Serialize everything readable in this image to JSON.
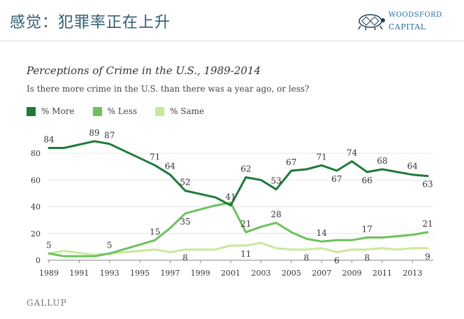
{
  "header": {
    "title": "感觉：犯罪率正在上升"
  },
  "logo": {
    "line1": "WOODSFORD",
    "line2": "CAPITAL"
  },
  "footer": {
    "source": "GALLUP"
  },
  "colors": {
    "more": "#1f7a3a",
    "less": "#6cc25a",
    "same": "#c9e99a",
    "header": "#2f5e74"
  },
  "chart_data": {
    "type": "line",
    "title": "Perceptions of Crime in the U.S., 1989-2014",
    "subtitle": "Is there more crime in the U.S. than there was a year ago, or less?",
    "xlim": [
      1989,
      2015
    ],
    "ylim": [
      0,
      90
    ],
    "x_ticks": [
      "1989",
      "1991",
      "1993",
      "1995",
      "1997",
      "1999",
      "2001",
      "2003",
      "2005",
      "2007",
      "2009",
      "2011",
      "2013"
    ],
    "y_ticks": [
      0,
      20,
      40,
      60,
      80
    ],
    "legend_position": "top-left",
    "series": [
      {
        "name": "% More",
        "color": "#1f7a3a",
        "x": [
          1989,
          1990,
          1992,
          1993,
          1996,
          1997,
          1998,
          2000,
          2001,
          2002,
          2003,
          2004,
          2005,
          2006,
          2007,
          2008,
          2009,
          2010,
          2011,
          2012,
          2013,
          2014
        ],
        "y": [
          84,
          84,
          89,
          87,
          71,
          64,
          52,
          47,
          41,
          62,
          60,
          53,
          67,
          68,
          71,
          67,
          74,
          66,
          68,
          66,
          64,
          63
        ]
      },
      {
        "name": "% Less",
        "color": "#6cc25a",
        "x": [
          1989,
          1990,
          1992,
          1993,
          1996,
          1997,
          1998,
          2000,
          2001,
          2002,
          2003,
          2004,
          2005,
          2006,
          2007,
          2008,
          2009,
          2010,
          2011,
          2012,
          2013,
          2014
        ],
        "y": [
          5,
          3,
          3,
          5,
          15,
          24,
          35,
          41,
          43,
          21,
          25,
          28,
          21,
          16,
          14,
          15,
          15,
          17,
          17,
          18,
          19,
          21
        ]
      },
      {
        "name": "% Same",
        "color": "#c9e99a",
        "x": [
          1989,
          1990,
          1992,
          1993,
          1996,
          1997,
          1998,
          2000,
          2001,
          2002,
          2003,
          2004,
          2005,
          2006,
          2007,
          2008,
          2009,
          2010,
          2011,
          2012,
          2013,
          2014
        ],
        "y": [
          5,
          7,
          4,
          5,
          8,
          6,
          8,
          8,
          11,
          11,
          13,
          9,
          8,
          8,
          9,
          6,
          8,
          8,
          9,
          8,
          9,
          9
        ]
      }
    ],
    "data_labels": [
      {
        "series": 0,
        "x": 1989,
        "y": 84,
        "text": "84",
        "pos": "above"
      },
      {
        "series": 0,
        "x": 1992,
        "y": 89,
        "text": "89",
        "pos": "above"
      },
      {
        "series": 0,
        "x": 1993,
        "y": 87,
        "text": "87",
        "pos": "above"
      },
      {
        "series": 0,
        "x": 1996,
        "y": 71,
        "text": "71",
        "pos": "above"
      },
      {
        "series": 0,
        "x": 1997,
        "y": 64,
        "text": "64",
        "pos": "above"
      },
      {
        "series": 0,
        "x": 1998,
        "y": 52,
        "text": "52",
        "pos": "above"
      },
      {
        "series": 0,
        "x": 2001,
        "y": 41,
        "text": "41",
        "pos": "above"
      },
      {
        "series": 0,
        "x": 2002,
        "y": 62,
        "text": "62",
        "pos": "above"
      },
      {
        "series": 0,
        "x": 2004,
        "y": 53,
        "text": "53",
        "pos": "above"
      },
      {
        "series": 0,
        "x": 2005,
        "y": 67,
        "text": "67",
        "pos": "above"
      },
      {
        "series": 0,
        "x": 2007,
        "y": 71,
        "text": "71",
        "pos": "above"
      },
      {
        "series": 0,
        "x": 2008,
        "y": 67,
        "text": "67",
        "pos": "below"
      },
      {
        "series": 0,
        "x": 2009,
        "y": 74,
        "text": "74",
        "pos": "above"
      },
      {
        "series": 0,
        "x": 2010,
        "y": 66,
        "text": "66",
        "pos": "below"
      },
      {
        "series": 0,
        "x": 2011,
        "y": 68,
        "text": "68",
        "pos": "above"
      },
      {
        "series": 0,
        "x": 2013,
        "y": 64,
        "text": "64",
        "pos": "above"
      },
      {
        "series": 0,
        "x": 2014,
        "y": 63,
        "text": "63",
        "pos": "below"
      },
      {
        "series": 1,
        "x": 1989,
        "y": 5,
        "text": "5",
        "pos": "above"
      },
      {
        "series": 1,
        "x": 1993,
        "y": 5,
        "text": "5",
        "pos": "above"
      },
      {
        "series": 1,
        "x": 1996,
        "y": 15,
        "text": "15",
        "pos": "above"
      },
      {
        "series": 1,
        "x": 1998,
        "y": 35,
        "text": "35",
        "pos": "below"
      },
      {
        "series": 1,
        "x": 2002,
        "y": 21,
        "text": "21",
        "pos": "above"
      },
      {
        "series": 1,
        "x": 2004,
        "y": 28,
        "text": "28",
        "pos": "above"
      },
      {
        "series": 1,
        "x": 2007,
        "y": 14,
        "text": "14",
        "pos": "above"
      },
      {
        "series": 1,
        "x": 2010,
        "y": 17,
        "text": "17",
        "pos": "above"
      },
      {
        "series": 1,
        "x": 2014,
        "y": 21,
        "text": "21",
        "pos": "above"
      },
      {
        "series": 2,
        "x": 1998,
        "y": 8,
        "text": "8",
        "pos": "below"
      },
      {
        "series": 2,
        "x": 2002,
        "y": 11,
        "text": "11",
        "pos": "below"
      },
      {
        "series": 2,
        "x": 2006,
        "y": 8,
        "text": "8",
        "pos": "below"
      },
      {
        "series": 2,
        "x": 2008,
        "y": 6,
        "text": "6",
        "pos": "below"
      },
      {
        "series": 2,
        "x": 2010,
        "y": 8,
        "text": "8",
        "pos": "below"
      },
      {
        "series": 2,
        "x": 2014,
        "y": 9,
        "text": "9",
        "pos": "below"
      }
    ]
  }
}
